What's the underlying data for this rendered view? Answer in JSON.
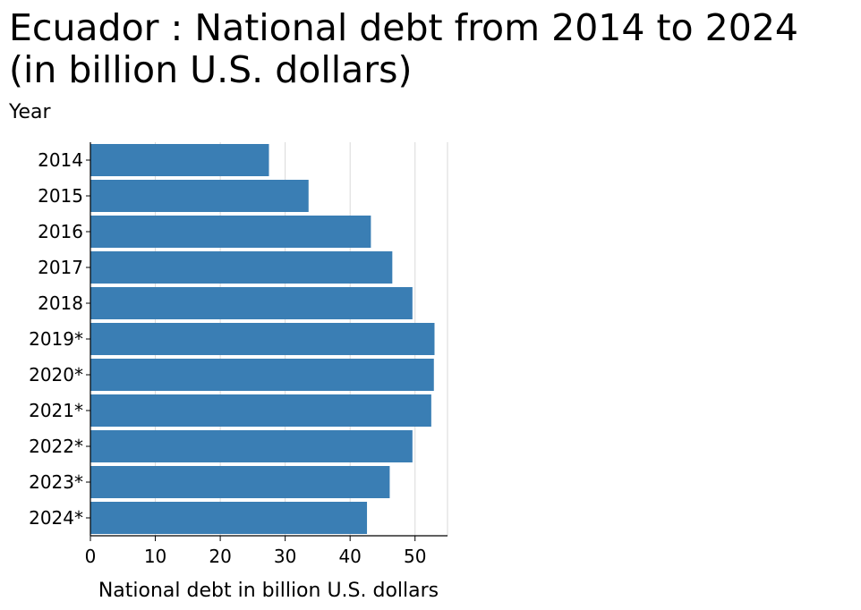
{
  "chart_data": {
    "type": "bar",
    "orientation": "horizontal",
    "title": "Ecuador : National debt from 2014 to 2024 (in billion U.S. dollars)",
    "xlabel": "National debt in billion U.S. dollars",
    "ylabel": "Year",
    "categories": [
      "2014",
      "2015",
      "2016",
      "2017",
      "2018",
      "2019*",
      "2020*",
      "2021*",
      "2022*",
      "2023*",
      "2024*"
    ],
    "values": [
      27.5,
      33.6,
      43.2,
      46.5,
      49.6,
      53.0,
      52.9,
      52.5,
      49.6,
      46.1,
      42.6
    ],
    "xlim": [
      0,
      55
    ],
    "xticks": [
      0,
      10,
      20,
      30,
      40,
      50
    ],
    "grid": "vertical",
    "colors": {
      "bar": "#3a7eb4",
      "grid": "#d9d9d9",
      "axis": "#000000"
    }
  }
}
